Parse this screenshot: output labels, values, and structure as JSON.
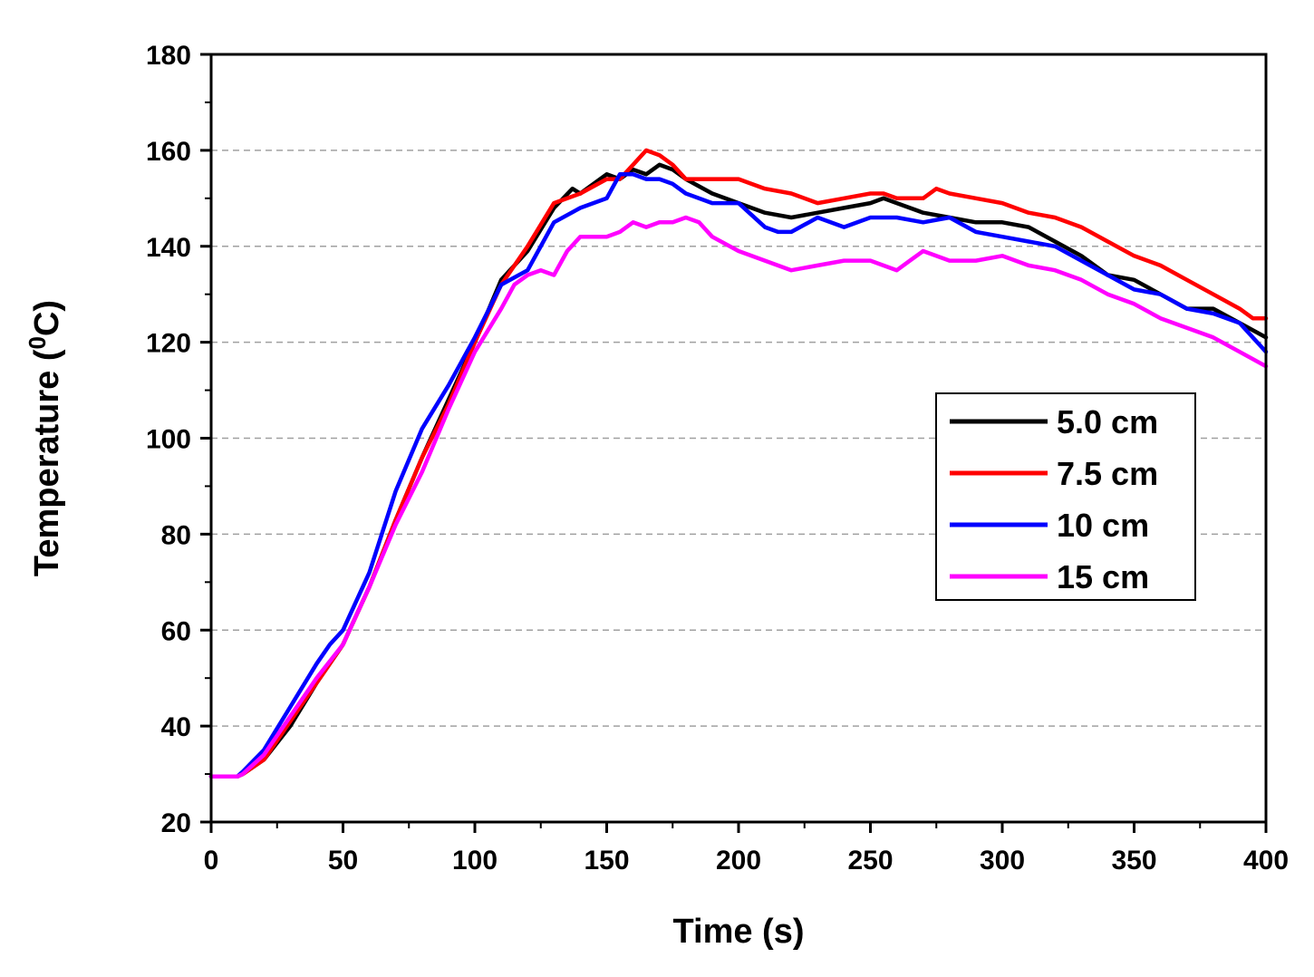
{
  "chart_data": {
    "type": "line",
    "title": "",
    "xlabel": "Time (s)",
    "ylabel": {
      "prefix": "Temperature (",
      "superscript": "0",
      "suffix": "C)"
    },
    "xlim": [
      0,
      400
    ],
    "ylim": [
      20,
      180
    ],
    "xticks": [
      0,
      50,
      100,
      150,
      200,
      250,
      300,
      350,
      400
    ],
    "yticks": [
      20,
      40,
      60,
      80,
      100,
      120,
      140,
      160,
      180
    ],
    "xtick_labels": [
      "0",
      "50",
      "100",
      "150",
      "200",
      "250",
      "300",
      "350",
      "400"
    ],
    "ytick_labels": [
      "20",
      "40",
      "60",
      "80",
      "100",
      "120",
      "140",
      "160",
      "180"
    ],
    "grid": {
      "y": [
        40,
        60,
        80,
        100,
        120,
        140,
        160
      ],
      "style": "dashed",
      "color": "#a0a0a0"
    },
    "legend_position": "right-middle",
    "series": [
      {
        "name": "5.0 cm",
        "color": "#000000",
        "x": [
          0,
          10,
          12,
          20,
          30,
          40,
          50,
          60,
          70,
          80,
          90,
          100,
          110,
          120,
          130,
          137,
          140,
          150,
          155,
          160,
          165,
          170,
          175,
          180,
          190,
          200,
          210,
          220,
          230,
          240,
          250,
          255,
          260,
          270,
          280,
          290,
          300,
          310,
          320,
          330,
          340,
          350,
          360,
          370,
          380,
          390,
          400
        ],
        "values": [
          29.5,
          29.5,
          30,
          33,
          40,
          49,
          57,
          69,
          83,
          96,
          108,
          120,
          133,
          139,
          148,
          152,
          151,
          155,
          154,
          156,
          155,
          157,
          156,
          154,
          151,
          149,
          147,
          146,
          147,
          148,
          149,
          150,
          149,
          147,
          146,
          145,
          145,
          144,
          141,
          138,
          134,
          133,
          130,
          127,
          127,
          124,
          121
        ]
      },
      {
        "name": "7.5 cm",
        "color": "#ff0000",
        "x": [
          0,
          10,
          12,
          20,
          30,
          40,
          50,
          60,
          70,
          80,
          90,
          100,
          110,
          120,
          130,
          140,
          150,
          155,
          160,
          165,
          170,
          175,
          180,
          190,
          200,
          210,
          220,
          230,
          240,
          250,
          255,
          260,
          270,
          275,
          280,
          290,
          300,
          310,
          320,
          330,
          340,
          350,
          360,
          370,
          380,
          390,
          395,
          400
        ],
        "values": [
          29.5,
          29.5,
          30,
          33,
          41,
          49,
          57,
          69,
          83,
          96,
          107,
          120,
          132,
          140,
          149,
          151,
          154,
          154,
          157,
          160,
          159,
          157,
          154,
          154,
          154,
          152,
          151,
          149,
          150,
          151,
          151,
          150,
          150,
          152,
          151,
          150,
          149,
          147,
          146,
          144,
          141,
          138,
          136,
          133,
          130,
          127,
          125,
          125
        ]
      },
      {
        "name": "10 cm",
        "color": "#0000ff",
        "x": [
          0,
          10,
          12,
          20,
          30,
          40,
          45,
          50,
          60,
          70,
          80,
          90,
          100,
          110,
          120,
          130,
          140,
          150,
          155,
          160,
          165,
          170,
          175,
          180,
          190,
          200,
          210,
          215,
          220,
          230,
          240,
          250,
          255,
          260,
          270,
          280,
          290,
          300,
          310,
          320,
          330,
          340,
          350,
          360,
          370,
          380,
          390,
          400
        ],
        "values": [
          29.5,
          29.5,
          30.5,
          35,
          44,
          53,
          57,
          60,
          72,
          89,
          102,
          111,
          121,
          132,
          135,
          145,
          148,
          150,
          155,
          155,
          154,
          154,
          153,
          151,
          149,
          149,
          144,
          143,
          143,
          146,
          144,
          146,
          146,
          146,
          145,
          146,
          143,
          142,
          141,
          140,
          137,
          134,
          131,
          130,
          127,
          126,
          124,
          118
        ]
      },
      {
        "name": "15 cm",
        "color": "#ff00ff",
        "x": [
          0,
          10,
          12,
          20,
          30,
          40,
          50,
          60,
          70,
          80,
          90,
          100,
          110,
          115,
          120,
          125,
          130,
          135,
          140,
          150,
          155,
          160,
          165,
          170,
          175,
          180,
          185,
          190,
          200,
          210,
          220,
          230,
          240,
          250,
          260,
          265,
          270,
          280,
          290,
          300,
          310,
          320,
          330,
          340,
          350,
          360,
          370,
          380,
          390,
          400
        ],
        "values": [
          29.5,
          29.5,
          30,
          34,
          42,
          50,
          57,
          69,
          82,
          93,
          106,
          118,
          127,
          132,
          134,
          135,
          134,
          139,
          142,
          142,
          143,
          145,
          144,
          145,
          145,
          146,
          145,
          142,
          139,
          137,
          135,
          136,
          137,
          137,
          135,
          137,
          139,
          137,
          137,
          138,
          136,
          135,
          133,
          130,
          128,
          125,
          123,
          121,
          118,
          115
        ]
      }
    ]
  }
}
